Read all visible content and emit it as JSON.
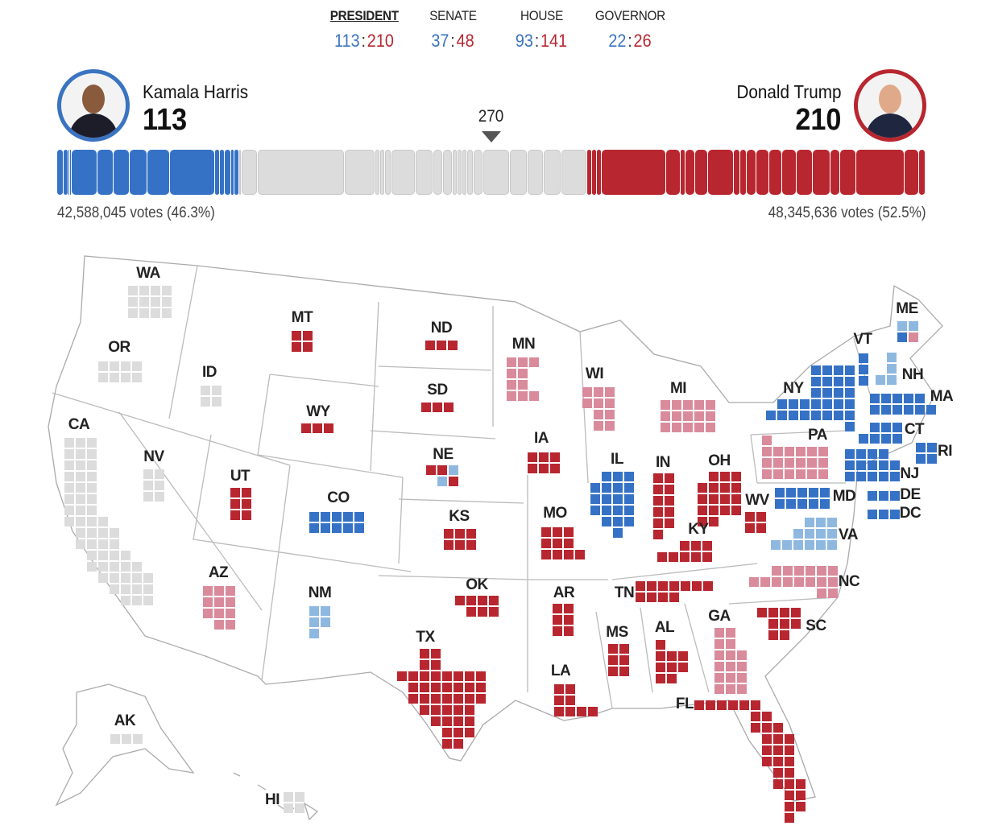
{
  "tabs": [
    {
      "label": "PRESIDENT",
      "dem": "113",
      "rep": "210",
      "active": true
    },
    {
      "label": "SENATE",
      "dem": "37",
      "rep": "48"
    },
    {
      "label": "HOUSE",
      "dem": "93",
      "rep": "141"
    },
    {
      "label": "GOVERNOR",
      "dem": "22",
      "rep": "26"
    }
  ],
  "score_separator": ":",
  "candidates": {
    "dem": {
      "name": "Kamala Harris",
      "ev": "113",
      "votes": "42,588,045 votes (46.3%)"
    },
    "rep": {
      "name": "Donald Trump",
      "ev": "210",
      "votes": "48,345,636 votes (52.5%)"
    }
  },
  "threshold": "270",
  "colors": {
    "dem": "#3572c6",
    "lean_dem": "#8fb8e0",
    "rep": "#b8262f",
    "lean_rep": "#d98b9b",
    "pending": "#dcdcdc"
  },
  "bar_segments": {
    "dem": [
      4,
      3,
      1,
      1,
      16,
      10,
      10,
      11,
      14,
      28,
      3,
      3,
      4,
      2,
      3
    ],
    "pending": [
      1,
      10,
      54,
      19,
      3,
      3,
      4,
      15,
      11,
      6,
      6,
      3,
      3,
      3,
      4,
      6,
      16,
      11,
      10,
      11,
      16
    ],
    "rep": [
      3,
      3,
      3,
      40,
      9,
      3,
      6,
      8,
      16,
      4,
      4,
      6,
      8,
      8,
      9,
      10,
      11,
      6,
      10,
      30,
      9,
      4
    ]
  },
  "states": [
    {
      "label": "WA",
      "ev": 12,
      "status": "pending"
    },
    {
      "label": "OR",
      "ev": 8,
      "status": "pending"
    },
    {
      "label": "ID",
      "ev": 4,
      "status": "pending"
    },
    {
      "label": "CA",
      "ev": 54,
      "status": "pending"
    },
    {
      "label": "NV",
      "ev": 6,
      "status": "pending"
    },
    {
      "label": "MT",
      "ev": 4,
      "status": "rep"
    },
    {
      "label": "WY",
      "ev": 3,
      "status": "rep"
    },
    {
      "label": "UT",
      "ev": 6,
      "status": "rep"
    },
    {
      "label": "CO",
      "ev": 10,
      "status": "dem"
    },
    {
      "label": "AZ",
      "ev": 11,
      "status": "lean_rep"
    },
    {
      "label": "NM",
      "ev": 5,
      "status": "lean_dem"
    },
    {
      "label": "ND",
      "ev": 3,
      "status": "rep"
    },
    {
      "label": "SD",
      "ev": 3,
      "status": "rep"
    },
    {
      "label": "NE",
      "ev": 5,
      "status": "rep",
      "tiles": [
        "rep",
        "rep",
        "lean_dem",
        "lean_dem",
        "rep"
      ]
    },
    {
      "label": "KS",
      "ev": 6,
      "status": "rep"
    },
    {
      "label": "OK",
      "ev": 7,
      "status": "rep"
    },
    {
      "label": "TX",
      "ev": 40,
      "status": "rep"
    },
    {
      "label": "MN",
      "ev": 10,
      "status": "lean_rep"
    },
    {
      "label": "IA",
      "ev": 6,
      "status": "rep"
    },
    {
      "label": "MO",
      "ev": 10,
      "status": "rep"
    },
    {
      "label": "AR",
      "ev": 6,
      "status": "rep"
    },
    {
      "label": "LA",
      "ev": 8,
      "status": "rep"
    },
    {
      "label": "WI",
      "ev": 10,
      "status": "lean_rep"
    },
    {
      "label": "IL",
      "ev": 19,
      "status": "dem"
    },
    {
      "label": "MI",
      "ev": 15,
      "status": "lean_rep"
    },
    {
      "label": "IN",
      "ev": 11,
      "status": "rep"
    },
    {
      "label": "OH",
      "ev": 17,
      "status": "rep"
    },
    {
      "label": "KY",
      "ev": 8,
      "status": "rep"
    },
    {
      "label": "TN",
      "ev": 11,
      "status": "rep"
    },
    {
      "label": "MS",
      "ev": 6,
      "status": "rep"
    },
    {
      "label": "AL",
      "ev": 9,
      "status": "rep"
    },
    {
      "label": "GA",
      "ev": 16,
      "status": "lean_rep"
    },
    {
      "label": "FL",
      "ev": 30,
      "status": "rep"
    },
    {
      "label": "SC",
      "ev": 9,
      "status": "rep"
    },
    {
      "label": "NC",
      "ev": 16,
      "status": "lean_rep"
    },
    {
      "label": "VA",
      "ev": 13,
      "status": "lean_dem"
    },
    {
      "label": "WV",
      "ev": 4,
      "status": "rep"
    },
    {
      "label": "MD",
      "ev": 10,
      "status": "dem"
    },
    {
      "label": "PA",
      "ev": 19,
      "status": "lean_rep"
    },
    {
      "label": "NY",
      "ev": 28,
      "status": "dem"
    },
    {
      "label": "VT",
      "ev": 3,
      "status": "dem"
    },
    {
      "label": "NH",
      "ev": 4,
      "status": "lean_dem"
    },
    {
      "label": "ME",
      "ev": 4,
      "status": "lean_dem",
      "tiles": [
        "lean_dem",
        "lean_dem",
        "dem",
        "lean_rep"
      ]
    },
    {
      "label": "MA",
      "ev": 11,
      "status": "dem"
    },
    {
      "label": "CT",
      "ev": 7,
      "status": "dem"
    },
    {
      "label": "RI",
      "ev": 4,
      "status": "dem"
    },
    {
      "label": "NJ",
      "ev": 14,
      "status": "dem"
    },
    {
      "label": "DE",
      "ev": 3,
      "status": "dem"
    },
    {
      "label": "DC",
      "ev": 3,
      "status": "dem"
    },
    {
      "label": "AK",
      "ev": 3,
      "status": "pending"
    },
    {
      "label": "HI",
      "ev": 4,
      "status": "pending"
    }
  ]
}
